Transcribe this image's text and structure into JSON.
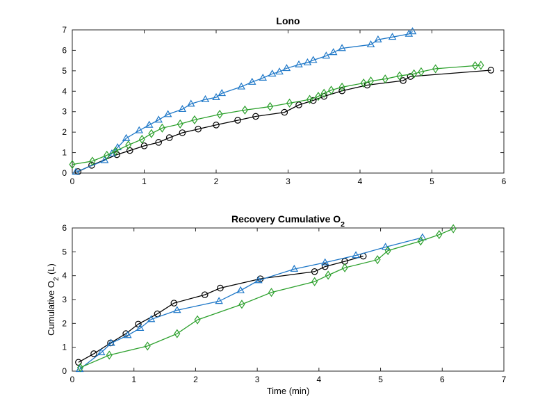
{
  "chart_data": [
    {
      "type": "line",
      "title": "Lono",
      "title_sub": "",
      "xlabel": "",
      "xlabel_sub": "",
      "xlabel_post": "",
      "ylabel": "",
      "ylabel_sub": "",
      "ylabel_post": "",
      "xlim": [
        0,
        6
      ],
      "ylim": [
        0,
        7
      ],
      "xticks": [
        "0",
        "1",
        "2",
        "3",
        "4",
        "5",
        "6"
      ],
      "yticks": [
        "0",
        "1",
        "2",
        "3",
        "4",
        "5",
        "6",
        "7"
      ],
      "grid": false,
      "series": [
        {
          "marker": "circle",
          "color": "#000000",
          "points": [
            [
              0.08,
              0.07
            ],
            [
              0.27,
              0.38
            ],
            [
              0.62,
              0.9
            ],
            [
              0.8,
              1.1
            ],
            [
              1.0,
              1.33
            ],
            [
              1.2,
              1.5
            ],
            [
              1.35,
              1.73
            ],
            [
              1.53,
              1.97
            ],
            [
              1.75,
              2.15
            ],
            [
              2.0,
              2.35
            ],
            [
              2.3,
              2.58
            ],
            [
              2.55,
              2.77
            ],
            [
              2.95,
              2.97
            ],
            [
              3.15,
              3.33
            ],
            [
              3.35,
              3.55
            ],
            [
              3.5,
              3.75
            ],
            [
              3.75,
              4.02
            ],
            [
              4.1,
              4.3
            ],
            [
              4.6,
              4.52
            ],
            [
              4.7,
              4.72
            ],
            [
              5.82,
              5.03
            ]
          ]
        },
        {
          "marker": "triangle",
          "color": "#1f78c8",
          "points": [
            [
              0.05,
              0.05
            ],
            [
              0.45,
              0.62
            ],
            [
              0.55,
              0.95
            ],
            [
              0.63,
              1.25
            ],
            [
              0.75,
              1.7
            ],
            [
              0.93,
              2.08
            ],
            [
              1.07,
              2.35
            ],
            [
              1.2,
              2.6
            ],
            [
              1.33,
              2.87
            ],
            [
              1.53,
              3.12
            ],
            [
              1.65,
              3.38
            ],
            [
              1.85,
              3.6
            ],
            [
              2.0,
              3.7
            ],
            [
              2.08,
              3.9
            ],
            [
              2.35,
              4.22
            ],
            [
              2.5,
              4.45
            ],
            [
              2.65,
              4.65
            ],
            [
              2.78,
              4.85
            ],
            [
              2.88,
              4.95
            ],
            [
              2.98,
              5.12
            ],
            [
              3.15,
              5.3
            ],
            [
              3.27,
              5.4
            ],
            [
              3.35,
              5.52
            ],
            [
              3.53,
              5.73
            ],
            [
              3.63,
              5.9
            ],
            [
              3.75,
              6.1
            ],
            [
              4.15,
              6.28
            ],
            [
              4.25,
              6.52
            ],
            [
              4.45,
              6.65
            ],
            [
              4.68,
              6.8
            ],
            [
              4.73,
              6.92
            ]
          ]
        },
        {
          "marker": "diamond",
          "color": "#2ca02c",
          "points": [
            [
              0.0,
              0.42
            ],
            [
              0.28,
              0.58
            ],
            [
              0.48,
              0.87
            ],
            [
              0.6,
              1.07
            ],
            [
              0.78,
              1.37
            ],
            [
              0.97,
              1.65
            ],
            [
              1.1,
              1.93
            ],
            [
              1.25,
              2.2
            ],
            [
              1.5,
              2.4
            ],
            [
              1.7,
              2.6
            ],
            [
              2.05,
              2.87
            ],
            [
              2.4,
              3.08
            ],
            [
              2.75,
              3.25
            ],
            [
              3.02,
              3.42
            ],
            [
              3.3,
              3.6
            ],
            [
              3.42,
              3.75
            ],
            [
              3.5,
              3.9
            ],
            [
              3.6,
              4.05
            ],
            [
              3.75,
              4.2
            ],
            [
              4.05,
              4.4
            ],
            [
              4.15,
              4.5
            ],
            [
              4.35,
              4.6
            ],
            [
              4.55,
              4.75
            ],
            [
              4.75,
              4.85
            ],
            [
              4.85,
              4.95
            ],
            [
              5.05,
              5.1
            ],
            [
              5.6,
              5.25
            ],
            [
              5.68,
              5.27
            ]
          ]
        }
      ]
    },
    {
      "type": "line",
      "title": "Recovery Cumulative O",
      "title_sub": "2",
      "xlabel": "Time (min)",
      "xlabel_sub": "",
      "xlabel_post": "",
      "ylabel": "Cumulative O",
      "ylabel_sub": "2",
      "ylabel_post": " (L)",
      "xlim": [
        0,
        7
      ],
      "ylim": [
        0,
        6
      ],
      "xticks": [
        "0",
        "1",
        "2",
        "3",
        "4",
        "5",
        "6",
        "7"
      ],
      "yticks": [
        "0",
        "1",
        "2",
        "3",
        "4",
        "5",
        "6"
      ],
      "grid": false,
      "series": [
        {
          "marker": "circle",
          "color": "#000000",
          "points": [
            [
              0.1,
              0.37
            ],
            [
              0.35,
              0.73
            ],
            [
              0.62,
              1.18
            ],
            [
              0.87,
              1.57
            ],
            [
              1.07,
              1.97
            ],
            [
              1.38,
              2.4
            ],
            [
              1.65,
              2.85
            ],
            [
              2.15,
              3.2
            ],
            [
              2.4,
              3.48
            ],
            [
              3.05,
              3.87
            ],
            [
              3.93,
              4.17
            ],
            [
              4.1,
              4.38
            ],
            [
              4.42,
              4.6
            ],
            [
              4.72,
              4.82
            ]
          ]
        },
        {
          "marker": "triangle",
          "color": "#1f78c8",
          "points": [
            [
              0.12,
              0.08
            ],
            [
              0.47,
              0.78
            ],
            [
              0.63,
              1.17
            ],
            [
              0.9,
              1.5
            ],
            [
              1.1,
              1.8
            ],
            [
              1.28,
              2.17
            ],
            [
              1.7,
              2.55
            ],
            [
              2.38,
              2.93
            ],
            [
              2.73,
              3.38
            ],
            [
              3.02,
              3.8
            ],
            [
              3.6,
              4.28
            ],
            [
              4.1,
              4.55
            ],
            [
              4.6,
              4.85
            ],
            [
              5.08,
              5.2
            ],
            [
              5.68,
              5.6
            ]
          ]
        },
        {
          "marker": "diamond",
          "color": "#2ca02c",
          "points": [
            [
              0.13,
              0.15
            ],
            [
              0.6,
              0.67
            ],
            [
              1.22,
              1.05
            ],
            [
              1.7,
              1.57
            ],
            [
              2.03,
              2.15
            ],
            [
              2.75,
              2.8
            ],
            [
              3.23,
              3.3
            ],
            [
              3.93,
              3.75
            ],
            [
              4.15,
              4.02
            ],
            [
              4.42,
              4.33
            ],
            [
              4.95,
              4.67
            ],
            [
              5.12,
              5.05
            ],
            [
              5.65,
              5.45
            ],
            [
              5.95,
              5.72
            ],
            [
              6.18,
              5.97
            ]
          ]
        }
      ]
    }
  ]
}
